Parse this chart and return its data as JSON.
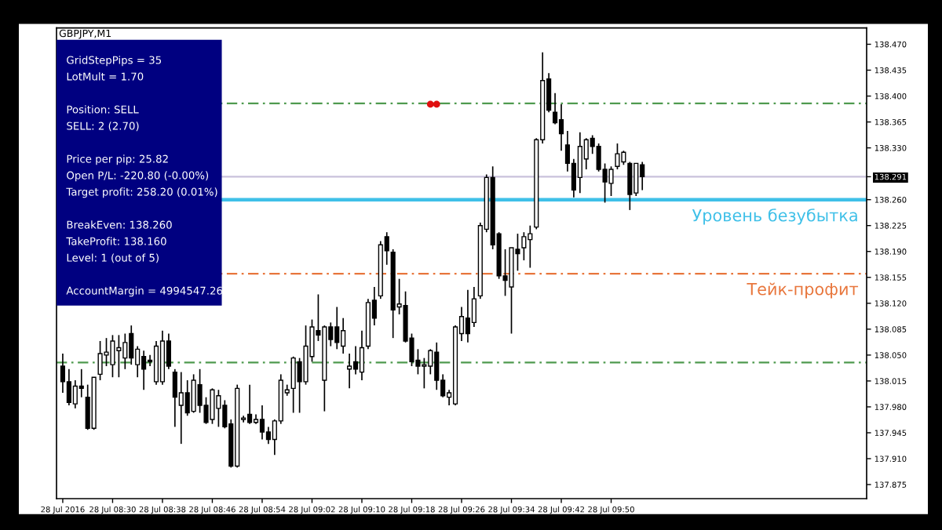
{
  "chart_data": {
    "type": "candlestick",
    "title": "GBPJPY,M1",
    "x": [
      "2016-07-28T08:22",
      "2016-07-28T08:23",
      "2016-07-28T08:24",
      "2016-07-28T08:25",
      "2016-07-28T08:26",
      "2016-07-28T08:27",
      "2016-07-28T08:28",
      "2016-07-28T08:29",
      "2016-07-28T08:30",
      "2016-07-28T08:31",
      "2016-07-28T08:32",
      "2016-07-28T08:33",
      "2016-07-28T08:34",
      "2016-07-28T08:35",
      "2016-07-28T08:36",
      "2016-07-28T08:37",
      "2016-07-28T08:38",
      "2016-07-28T08:39",
      "2016-07-28T08:40",
      "2016-07-28T08:41",
      "2016-07-28T08:42",
      "2016-07-28T08:43",
      "2016-07-28T08:44",
      "2016-07-28T08:45",
      "2016-07-28T08:46",
      "2016-07-28T08:47",
      "2016-07-28T08:48",
      "2016-07-28T08:49",
      "2016-07-28T08:50",
      "2016-07-28T08:51",
      "2016-07-28T08:52",
      "2016-07-28T08:53",
      "2016-07-28T08:54",
      "2016-07-28T08:55",
      "2016-07-28T08:56",
      "2016-07-28T08:57",
      "2016-07-28T08:58",
      "2016-07-28T08:59",
      "2016-07-28T09:00",
      "2016-07-28T09:01",
      "2016-07-28T09:02",
      "2016-07-28T09:03",
      "2016-07-28T09:04",
      "2016-07-28T09:05",
      "2016-07-28T09:06",
      "2016-07-28T09:07",
      "2016-07-28T09:08",
      "2016-07-28T09:09",
      "2016-07-28T09:10",
      "2016-07-28T09:11",
      "2016-07-28T09:12",
      "2016-07-28T09:13",
      "2016-07-28T09:14",
      "2016-07-28T09:15",
      "2016-07-28T09:16",
      "2016-07-28T09:17",
      "2016-07-28T09:18",
      "2016-07-28T09:19",
      "2016-07-28T09:20",
      "2016-07-28T09:21",
      "2016-07-28T09:22",
      "2016-07-28T09:23",
      "2016-07-28T09:24",
      "2016-07-28T09:25",
      "2016-07-28T09:26",
      "2016-07-28T09:27",
      "2016-07-28T09:28",
      "2016-07-28T09:29",
      "2016-07-28T09:30",
      "2016-07-28T09:31",
      "2016-07-28T09:32",
      "2016-07-28T09:33",
      "2016-07-28T09:34",
      "2016-07-28T09:35",
      "2016-07-28T09:36",
      "2016-07-28T09:37",
      "2016-07-28T09:38",
      "2016-07-28T09:39",
      "2016-07-28T09:40",
      "2016-07-28T09:41",
      "2016-07-28T09:42",
      "2016-07-28T09:43",
      "2016-07-28T09:44",
      "2016-07-28T09:45",
      "2016-07-28T09:46",
      "2016-07-28T09:47",
      "2016-07-28T09:48",
      "2016-07-28T09:49",
      "2016-07-28T09:50",
      "2016-07-28T09:51",
      "2016-07-28T09:52",
      "2016-07-28T09:53",
      "2016-07-28T09:54",
      "2016-07-28T09:55"
    ],
    "ohlc": [
      [
        138.035,
        138.052,
        137.999,
        138.014
      ],
      [
        138.014,
        138.031,
        137.982,
        137.986
      ],
      [
        137.984,
        138.016,
        137.978,
        138.008
      ],
      [
        138.008,
        138.031,
        137.993,
        138.005
      ],
      [
        137.993,
        138.01,
        137.949,
        137.951
      ],
      [
        137.951,
        138.02,
        137.949,
        138.02
      ],
      [
        138.024,
        138.069,
        138.016,
        138.052
      ],
      [
        138.05,
        138.073,
        138.035,
        138.054
      ],
      [
        138.037,
        138.077,
        138.02,
        138.069
      ],
      [
        138.056,
        138.077,
        138.02,
        138.06
      ],
      [
        138.046,
        138.079,
        138.031,
        138.067
      ],
      [
        138.079,
        138.09,
        138.037,
        138.046
      ],
      [
        138.037,
        138.062,
        138.02,
        138.058
      ],
      [
        138.048,
        138.056,
        138.003,
        138.031
      ],
      [
        138.043,
        138.05,
        138.035,
        138.041
      ],
      [
        138.014,
        138.069,
        138.01,
        138.062
      ],
      [
        138.014,
        138.083,
        138.01,
        138.069
      ],
      [
        138.069,
        138.079,
        138.031,
        138.035
      ],
      [
        138.027,
        138.031,
        137.953,
        137.993
      ],
      [
        137.982,
        138.027,
        137.93,
        137.999
      ],
      [
        137.999,
        138.016,
        137.968,
        137.972
      ],
      [
        137.974,
        138.024,
        137.972,
        138.016
      ],
      [
        138.01,
        138.031,
        137.972,
        137.982
      ],
      [
        137.982,
        137.993,
        137.957,
        137.959
      ],
      [
        137.963,
        138.005,
        137.957,
        138.003
      ],
      [
        137.978,
        138.003,
        137.953,
        137.995
      ],
      [
        137.982,
        137.989,
        137.951,
        137.953
      ],
      [
        137.957,
        137.963,
        137.898,
        137.9
      ],
      [
        137.9,
        138.01,
        137.898,
        138.005
      ],
      [
        137.963,
        137.968,
        137.959,
        137.965
      ],
      [
        137.97,
        138.01,
        137.957,
        137.959
      ],
      [
        137.959,
        137.97,
        137.957,
        137.963
      ],
      [
        137.963,
        137.982,
        137.936,
        137.946
      ],
      [
        137.946,
        137.953,
        137.93,
        137.936
      ],
      [
        137.936,
        137.963,
        137.915,
        137.961
      ],
      [
        137.961,
        138.024,
        137.957,
        138.016
      ],
      [
        137.999,
        138.01,
        137.995,
        138.003
      ],
      [
        138.005,
        138.048,
        137.972,
        138.046
      ],
      [
        138.041,
        138.046,
        137.972,
        138.014
      ],
      [
        138.014,
        138.09,
        138.01,
        138.062
      ],
      [
        138.048,
        138.098,
        138.041,
        138.088
      ],
      [
        138.083,
        138.132,
        138.069,
        138.077
      ],
      [
        138.016,
        138.09,
        137.974,
        138.088
      ],
      [
        138.088,
        138.094,
        138.062,
        138.071
      ],
      [
        138.088,
        138.115,
        138.058,
        138.067
      ],
      [
        138.062,
        138.1,
        138.052,
        138.083
      ],
      [
        138.031,
        138.052,
        138.005,
        138.035
      ],
      [
        138.041,
        138.062,
        138.024,
        138.031
      ],
      [
        138.027,
        138.083,
        138.016,
        138.06
      ],
      [
        138.062,
        138.126,
        138.058,
        138.121
      ],
      [
        138.124,
        138.142,
        138.09,
        138.1
      ],
      [
        138.13,
        138.204,
        138.126,
        138.199
      ],
      [
        138.21,
        138.216,
        138.172,
        138.191
      ],
      [
        138.189,
        138.193,
        138.073,
        138.111
      ],
      [
        138.115,
        138.153,
        138.105,
        138.119
      ],
      [
        138.117,
        138.136,
        138.067,
        138.069
      ],
      [
        138.073,
        138.079,
        138.035,
        138.041
      ],
      [
        138.043,
        138.058,
        138.024,
        138.035
      ],
      [
        138.035,
        138.046,
        138.005,
        138.037
      ],
      [
        138.035,
        138.058,
        138.024,
        138.056
      ],
      [
        138.054,
        138.067,
        138.003,
        138.016
      ],
      [
        138.016,
        138.024,
        137.993,
        137.995
      ],
      [
        137.993,
        138.003,
        137.982,
        137.999
      ],
      [
        137.984,
        138.09,
        137.982,
        138.088
      ],
      [
        138.079,
        138.115,
        138.069,
        138.102
      ],
      [
        138.1,
        138.138,
        138.067,
        138.079
      ],
      [
        138.094,
        138.142,
        138.088,
        138.126
      ],
      [
        138.13,
        138.229,
        138.126,
        138.225
      ],
      [
        138.22,
        138.294,
        138.216,
        138.29
      ],
      [
        138.29,
        138.305,
        138.193,
        138.199
      ],
      [
        138.214,
        138.216,
        138.153,
        138.157
      ],
      [
        138.157,
        138.193,
        138.13,
        138.151
      ],
      [
        138.142,
        138.195,
        138.079,
        138.195
      ],
      [
        138.193,
        138.214,
        138.164,
        138.187
      ],
      [
        138.195,
        138.216,
        138.178,
        138.21
      ],
      [
        138.206,
        138.225,
        138.168,
        138.214
      ],
      [
        138.223,
        138.343,
        138.22,
        138.341
      ],
      [
        138.341,
        138.459,
        138.336,
        138.421
      ],
      [
        138.423,
        138.431,
        138.378,
        138.381
      ],
      [
        138.378,
        138.404,
        138.362,
        138.364
      ],
      [
        138.368,
        138.389,
        138.326,
        138.349
      ],
      [
        138.334,
        138.353,
        138.298,
        138.309
      ],
      [
        138.309,
        138.315,
        138.263,
        138.273
      ],
      [
        138.29,
        138.351,
        138.269,
        138.332
      ],
      [
        138.315,
        138.343,
        138.301,
        138.341
      ],
      [
        138.343,
        138.347,
        138.322,
        138.332
      ],
      [
        138.332,
        138.336,
        138.298,
        138.301
      ],
      [
        138.301,
        138.309,
        138.256,
        138.284
      ],
      [
        138.282,
        138.305,
        138.265,
        138.301
      ],
      [
        138.305,
        138.336,
        138.301,
        138.322
      ],
      [
        138.311,
        138.326,
        138.307,
        138.324
      ],
      [
        138.309,
        138.311,
        138.246,
        138.267
      ],
      [
        138.269,
        138.309,
        138.265,
        138.309
      ],
      [
        138.307,
        138.311,
        138.273,
        138.291
      ]
    ],
    "series": [
      {
        "type": "scatter",
        "x": [
          "2016-07-28T09:21",
          "2016-07-28T09:22"
        ],
        "values": [
          138.389,
          138.389
        ],
        "color": "#e01010"
      }
    ],
    "xlim": [
      "2016-07-28T08:21",
      "2016-07-28T10:31"
    ],
    "xticks": [
      {
        "value": "2016-07-28T08:22",
        "label": "28 Jul 2016"
      },
      {
        "value": "2016-07-28T08:30",
        "label": "28 Jul 08:30"
      },
      {
        "value": "2016-07-28T08:38",
        "label": "28 Jul 08:38"
      },
      {
        "value": "2016-07-28T08:46",
        "label": "28 Jul 08:46"
      },
      {
        "value": "2016-07-28T08:54",
        "label": "28 Jul 08:54"
      },
      {
        "value": "2016-07-28T09:02",
        "label": "28 Jul 09:02"
      },
      {
        "value": "2016-07-28T09:10",
        "label": "28 Jul 09:10"
      },
      {
        "value": "2016-07-28T09:18",
        "label": "28 Jul 09:18"
      },
      {
        "value": "2016-07-28T09:26",
        "label": "28 Jul 09:26"
      },
      {
        "value": "2016-07-28T09:34",
        "label": "28 Jul 09:34"
      },
      {
        "value": "2016-07-28T09:42",
        "label": "28 Jul 09:42"
      },
      {
        "value": "2016-07-28T09:50",
        "label": "28 Jul 09:50"
      }
    ],
    "ylim": [
      137.856,
      138.492
    ],
    "yticks": [
      {
        "value": 138.47,
        "label": "138.470"
      },
      138.435,
      {
        "value": 138.4,
        "label": "138.400"
      },
      138.365,
      {
        "value": 138.33,
        "label": "138.330"
      },
      138.291,
      {
        "value": 138.26,
        "label": "138.260"
      },
      138.225,
      {
        "value": 138.19,
        "label": "138.190"
      },
      138.155,
      {
        "value": 138.12,
        "label": "138.120"
      },
      138.085,
      {
        "value": 138.05,
        "label": "138.050"
      },
      138.015,
      {
        "value": 137.98,
        "label": "137.980"
      },
      137.945,
      {
        "value": 137.91,
        "label": "137.910"
      },
      137.875
    ],
    "ref_lines": [
      {
        "axis": "y",
        "value": 138.39,
        "color": "#4f9a4f",
        "line_style": "dashed"
      },
      {
        "axis": "y",
        "value": 138.291,
        "color": "#c9c2dc",
        "line_style": "solid"
      },
      {
        "axis": "y",
        "value": 138.26,
        "label": "Уровень безубытка",
        "color": "#3fc0e8",
        "line_style": "solid"
      },
      {
        "axis": "y",
        "value": 138.16,
        "label": "Тейк-профит",
        "color": "#e8763c",
        "line_style": "dashed"
      },
      {
        "axis": "y",
        "value": 138.04,
        "color": "#4f9a4f",
        "line_style": "dashed"
      }
    ],
    "annotations": [
      "GridStepPips = 35",
      "LotMult = 1.70",
      "Position: SELL",
      "SELL: 2 (2.70)",
      "Price per pip: 25.82",
      "Open P/L: -220.80 (-0.00%)",
      "Target profit: 258.20 (0.01%)",
      "BreakEven: 138.260",
      "TakeProfit: 138.160",
      "Level: 1 (out of 5)",
      "AccountMargin = 4994547.26"
    ],
    "grid": false,
    "legend": false
  }
}
